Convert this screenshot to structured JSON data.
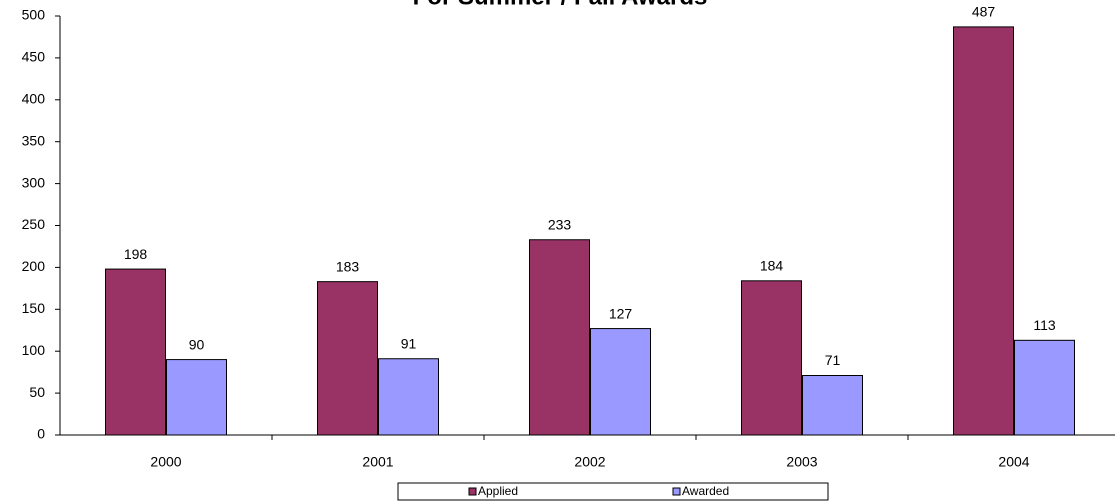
{
  "chart_data": {
    "type": "bar",
    "title": "For Summer / Fall Awards",
    "categories": [
      "2000",
      "2001",
      "2002",
      "2003",
      "2004"
    ],
    "series": [
      {
        "name": "Applied",
        "color": "#993366",
        "values": [
          198,
          183,
          233,
          184,
          487
        ]
      },
      {
        "name": "Awarded",
        "color": "#9999ff",
        "values": [
          90,
          91,
          127,
          71,
          113
        ]
      }
    ],
    "ylim": [
      0,
      500
    ],
    "yticks": [
      0,
      50,
      100,
      150,
      200,
      250,
      300,
      350,
      400,
      450,
      500
    ],
    "legend": "bottom"
  }
}
